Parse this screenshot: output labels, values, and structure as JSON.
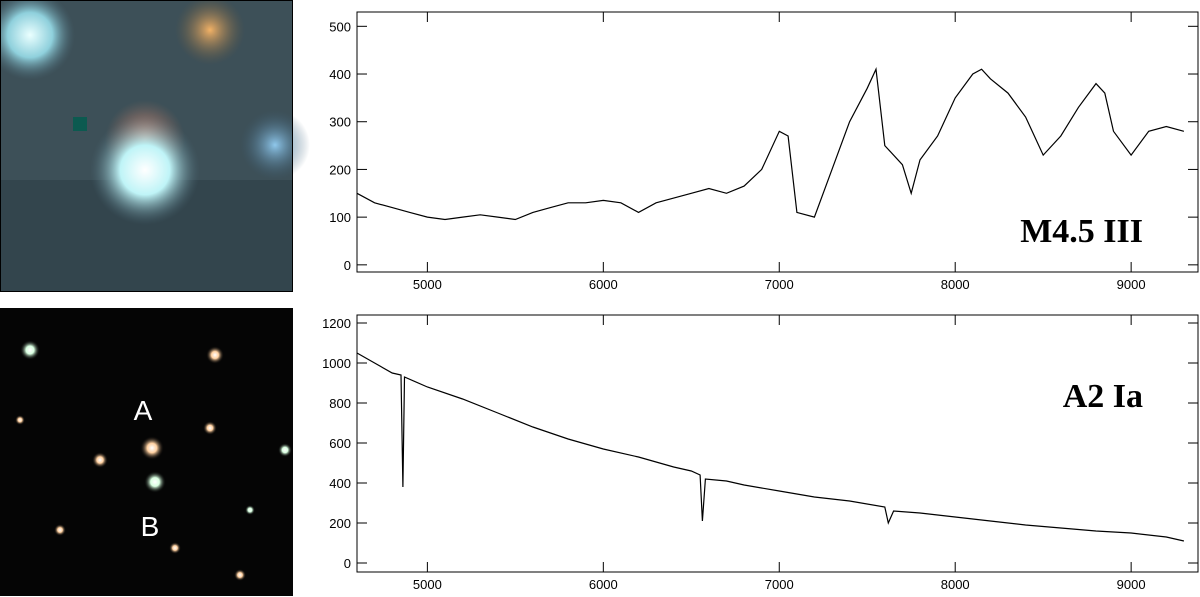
{
  "image_labels": [
    "A",
    "B"
  ],
  "chart_data": [
    {
      "type": "line",
      "annotation": "M4.5 III",
      "color": "#000000",
      "x": [
        4600,
        4700,
        4800,
        4900,
        5000,
        5100,
        5200,
        5300,
        5400,
        5500,
        5600,
        5700,
        5800,
        5900,
        6000,
        6100,
        6200,
        6300,
        6400,
        6500,
        6600,
        6700,
        6800,
        6900,
        7000,
        7050,
        7100,
        7200,
        7300,
        7400,
        7500,
        7550,
        7600,
        7700,
        7750,
        7800,
        7900,
        8000,
        8100,
        8150,
        8200,
        8300,
        8400,
        8500,
        8600,
        8700,
        8800,
        8850,
        8900,
        9000,
        9100,
        9200,
        9300
      ],
      "values": [
        150,
        130,
        120,
        110,
        100,
        95,
        100,
        105,
        100,
        95,
        110,
        120,
        130,
        130,
        135,
        130,
        110,
        130,
        140,
        150,
        160,
        150,
        165,
        200,
        280,
        270,
        110,
        100,
        200,
        300,
        370,
        410,
        250,
        210,
        150,
        220,
        270,
        350,
        400,
        410,
        390,
        360,
        310,
        230,
        270,
        330,
        380,
        360,
        280,
        230,
        280,
        290,
        280
      ],
      "xlim": [
        4600,
        9380
      ],
      "ylim": [
        -15,
        530
      ],
      "xticks": [
        5000,
        6000,
        7000,
        8000,
        9000
      ],
      "yticks": [
        0,
        100,
        200,
        300,
        400,
        500
      ]
    },
    {
      "type": "line",
      "annotation": "A2 Ia",
      "color": "#000000",
      "x": [
        4600,
        4700,
        4800,
        4850,
        4861,
        4870,
        5000,
        5200,
        5400,
        5600,
        5800,
        6000,
        6200,
        6400,
        6500,
        6550,
        6563,
        6580,
        6700,
        6800,
        7000,
        7200,
        7400,
        7600,
        7620,
        7650,
        7800,
        8000,
        8200,
        8400,
        8600,
        8800,
        9000,
        9200,
        9300
      ],
      "values": [
        1050,
        1000,
        950,
        940,
        380,
        930,
        880,
        820,
        750,
        680,
        620,
        570,
        530,
        480,
        460,
        440,
        210,
        420,
        410,
        390,
        360,
        330,
        310,
        280,
        200,
        260,
        250,
        230,
        210,
        190,
        175,
        160,
        150,
        130,
        110
      ],
      "xlim": [
        4600,
        9380
      ],
      "ylim": [
        -45,
        1240
      ],
      "xticks": [
        5000,
        6000,
        7000,
        8000,
        9000
      ],
      "yticks": [
        0,
        200,
        400,
        600,
        800,
        1000,
        1200
      ]
    }
  ]
}
